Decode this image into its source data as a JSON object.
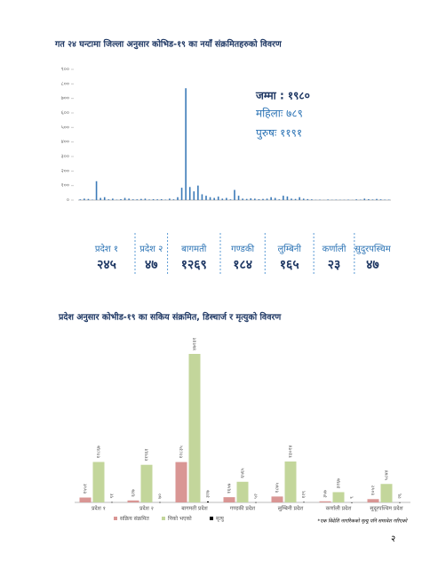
{
  "chart_data": [
    {
      "type": "district_bar",
      "title": "गत २४ घन्टामा जिल्ला अनुसार कोभिड-१९ का नयाँ संक्रमितहरुको विवरण",
      "color": "#3c7ab8",
      "ylim": [
        0,
        900
      ],
      "yticks": [
        {
          "value": 0,
          "label": "०"
        },
        {
          "value": 100,
          "label": "१००"
        },
        {
          "value": 200,
          "label": "२००"
        },
        {
          "value": 300,
          "label": "३००"
        },
        {
          "value": 400,
          "label": "४००"
        },
        {
          "value": 500,
          "label": "५००"
        },
        {
          "value": 600,
          "label": "६००"
        },
        {
          "value": 700,
          "label": "७००"
        },
        {
          "value": 800,
          "label": "८००"
        },
        {
          "value": 900,
          "label": "९००"
        }
      ],
      "annotations": [
        "जम्मा : १९८०",
        "महिलाः ७८९",
        "पुरुषः ११९१"
      ],
      "groups": [
        {
          "name": "प्रदेश १",
          "total": "२४५",
          "values": [
            5,
            10,
            8,
            3,
            130,
            15,
            20,
            5,
            10,
            3,
            6,
            15,
            10,
            5
          ]
        },
        {
          "name": "प्रदेश २",
          "total": "४७",
          "values": [
            5,
            8,
            10,
            4,
            6,
            5,
            6,
            3
          ]
        },
        {
          "name": "बागमती",
          "total": "१२६९",
          "values": [
            10,
            5,
            20,
            85,
            770,
            90,
            60,
            100,
            40,
            30,
            20,
            15,
            24
          ]
        },
        {
          "name": "गण्डकी",
          "total": "१८४",
          "values": [
            10,
            15,
            5,
            70,
            30,
            10,
            8,
            12,
            10,
            6,
            8
          ]
        },
        {
          "name": "लुम्बिनी",
          "total": "१६५",
          "values": [
            10,
            20,
            15,
            5,
            30,
            25,
            10,
            8,
            20,
            10,
            7,
            5
          ]
        },
        {
          "name": "कर्णाली",
          "total": "२३",
          "values": [
            2,
            3,
            1,
            4,
            2,
            3,
            2,
            2,
            3,
            1
          ]
        },
        {
          "name": "सुदुरपस्चिम",
          "total": "४७",
          "values": [
            5,
            3,
            10,
            6,
            4,
            8,
            5,
            3,
            3
          ]
        }
      ]
    },
    {
      "type": "grouped_bar",
      "title": "प्रदेश अनुसार कोभीड-१९ का सकिय संक्रमित, डिस्चार्ज र मृत्युको विवरण",
      "categories": [
        "प्रदेश १",
        "प्रदेश २",
        "बागमती प्रदेश",
        "गण्डकी प्रदेश",
        "लुम्बिनी प्रदेश",
        "कर्णाली प्रदेश",
        "सुदूरपश्चिम प्रदेश"
      ],
      "series": [
        {
          "name": "सक्रिय संक्रमित",
          "color": "#d99694",
          "values": [
            1551,
            627,
            12835,
            1657,
            1875,
            357,
            1052
          ],
          "value_labels": [
            "१५५१",
            "६२७",
            "१२८३५",
            "१६५७",
            "१८७५",
            "३५७",
            "१०५२"
          ]
        },
        {
          "name": "निको भएको",
          "color": "#c3d69b",
          "values": [
            12867,
            11961,
            47231,
            6565,
            13014,
            3267,
            5874
          ],
          "value_labels": [
            "१२८६७",
            "११९६१",
            "४७२३१",
            "६५६५",
            "१३०१४",
            "३२६७",
            "५८७४"
          ]
        },
        {
          "name": "मृत्यु",
          "color": "#000000",
          "values": [
            91,
            70,
            327,
            52,
            129,
            9,
            26
          ],
          "value_labels": [
            "९१",
            "७०",
            "३२७",
            "५२",
            "१२९",
            "९",
            "२६"
          ]
        }
      ],
      "footnote": "*एक विदेशि नागरिकको मृत्यु पनि समावेश गरिएको"
    }
  ],
  "page_number": "२"
}
